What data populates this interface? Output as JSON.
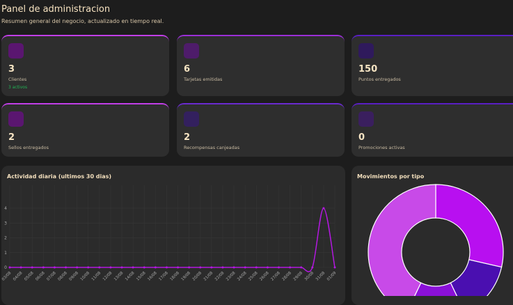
{
  "header": {
    "title": "Panel de administracion",
    "subtitle": "Resumen general del negocio, actualizado en tiempo real."
  },
  "cards": [
    {
      "value": 3,
      "label": "Clientes",
      "note": "3 activos",
      "color": "#c23ee8",
      "icon": "#5a1670"
    },
    {
      "value": 6,
      "label": "Tarjetas emitidas",
      "color": "#9b2fd8",
      "icon": "#4e1c6a"
    },
    {
      "value": 150,
      "label": "Puntos entregados",
      "color": "#5a1fc4",
      "icon": "#2f1a5c"
    },
    {
      "value": 2,
      "label": "Sellos entregados",
      "color": "#c23ee8",
      "icon": "#5a1670"
    },
    {
      "value": 2,
      "label": "Recompensas canjeadas",
      "color": "#6a2ad0",
      "icon": "#33205e"
    },
    {
      "value": 0,
      "label": "Promociones activas",
      "color": "#5a1fc4",
      "icon": "#3a1f5e"
    }
  ],
  "chart_data": [
    {
      "type": "line",
      "title": "Actividad diaria (ultimos 30 dias)",
      "categories": [
        "03/08",
        "04/08",
        "05/08",
        "06/08",
        "07/08",
        "08/08",
        "09/08",
        "10/08",
        "11/08",
        "12/08",
        "13/08",
        "14/08",
        "15/08",
        "16/08",
        "17/08",
        "18/08",
        "19/08",
        "20/08",
        "21/08",
        "22/08",
        "23/08",
        "24/08",
        "25/08",
        "26/08",
        "27/08",
        "28/08",
        "29/08",
        "30/08",
        "31/08",
        "01/09"
      ],
      "series": [
        {
          "color": "#b318e0",
          "values": [
            0,
            0,
            0,
            0,
            0,
            0,
            0,
            0,
            0,
            0,
            0,
            0,
            0,
            0,
            0,
            0,
            0,
            0,
            0,
            0,
            0,
            0,
            0,
            0,
            0,
            0,
            0,
            0,
            4,
            0
          ]
        }
      ],
      "ylim": [
        0,
        4
      ],
      "yticks": [
        0,
        1,
        2,
        3,
        4
      ],
      "grid": true
    },
    {
      "type": "doughnut",
      "title": "Movimientos por tipo",
      "values": [
        2,
        1,
        1,
        3
      ],
      "colors": [
        "#b80ff0",
        "#4a0fb0",
        "#8a10d8",
        "#c84ae8"
      ]
    }
  ]
}
